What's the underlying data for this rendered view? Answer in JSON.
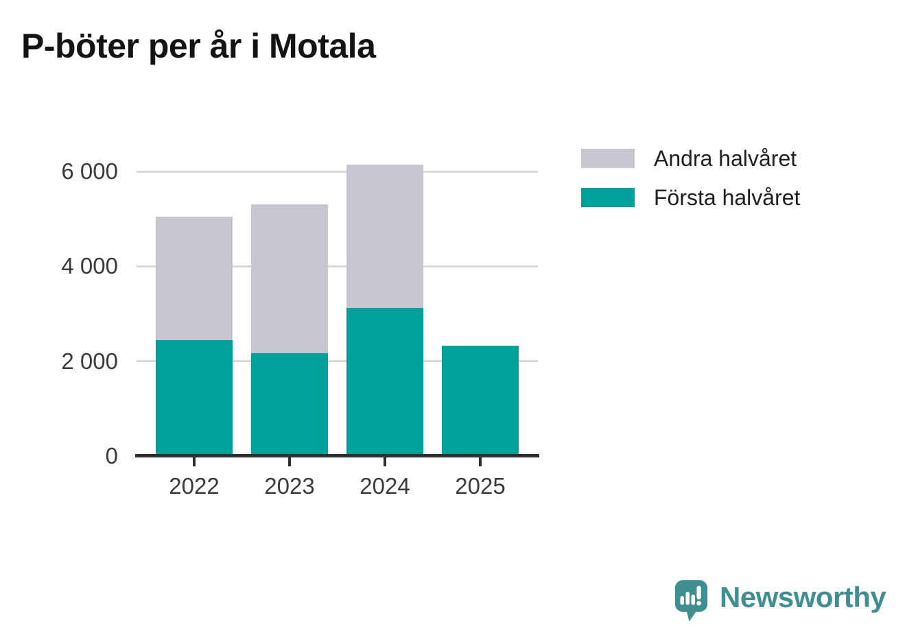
{
  "chart_data": {
    "type": "bar",
    "stacked": true,
    "title": "P-böter per år i Motala",
    "categories": [
      "2022",
      "2023",
      "2024",
      "2025"
    ],
    "series": [
      {
        "name": "Första halvåret",
        "color": "#00a19a",
        "values": [
          2450,
          2170,
          3120,
          2330
        ]
      },
      {
        "name": "Andra halvåret",
        "color": "#c8c5d0",
        "values": [
          2600,
          3130,
          3030,
          0
        ]
      }
    ],
    "totals": [
      5050,
      5300,
      6150,
      2330
    ],
    "xlabel": "",
    "ylabel": "",
    "ylim": [
      0,
      6400
    ],
    "yticks": [
      0,
      2000,
      4000,
      6000
    ],
    "ytick_labels": [
      "0",
      "2 000",
      "4 000",
      "6 000"
    ],
    "grid": "horizontal",
    "legend_position": "right-top",
    "legend": [
      {
        "label": "Andra halvåret",
        "color": "#c8c5d0"
      },
      {
        "label": "Första halvåret",
        "color": "#00a19a"
      }
    ],
    "axis_color": "#2f2f2f",
    "gridline_color": "#d9d9d9"
  },
  "branding": {
    "logo_text": "Newsworthy",
    "logo_color": "#3e8e92",
    "logo_icon": "speech-bubble-bar-chart-icon"
  }
}
